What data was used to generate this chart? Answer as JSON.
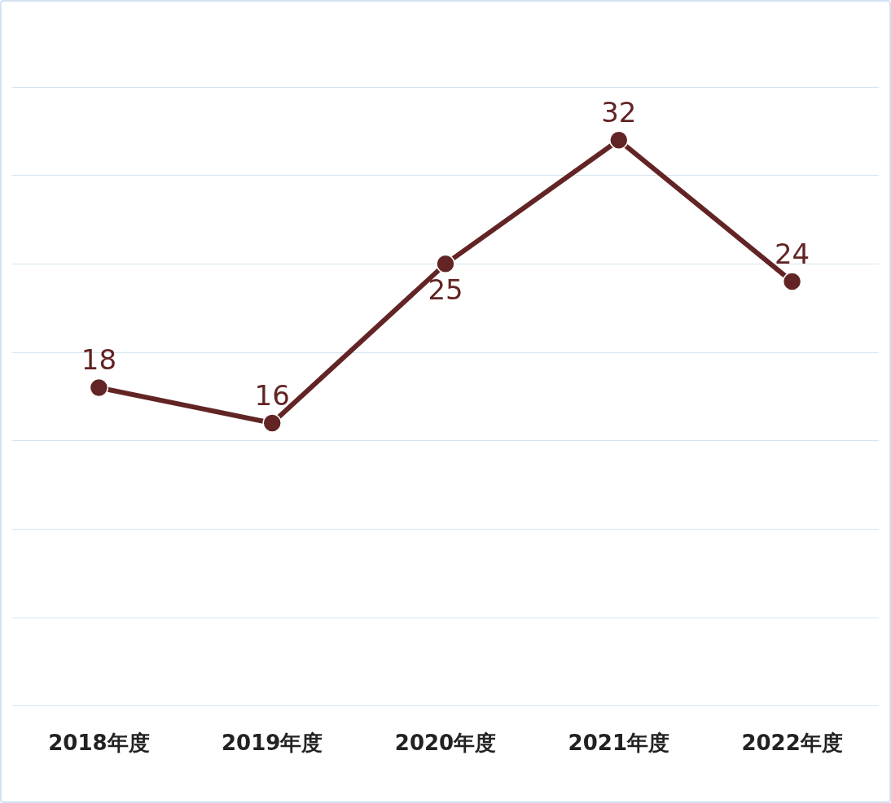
{
  "chart_data": {
    "type": "line",
    "categories": [
      "2018年度",
      "2019年度",
      "2020年度",
      "2021年度",
      "2022年度"
    ],
    "series": [
      {
        "color": "#622424",
        "values": [
          18,
          16,
          25,
          32,
          24
        ]
      }
    ],
    "ylim": [
      0,
      35
    ],
    "yticks": [
      0,
      5,
      10,
      15,
      20,
      25,
      30,
      35
    ],
    "tick_labels": "x",
    "grid": "y",
    "legend": false,
    "marker": "circle",
    "line_style": "solid",
    "data_labels": true
  }
}
